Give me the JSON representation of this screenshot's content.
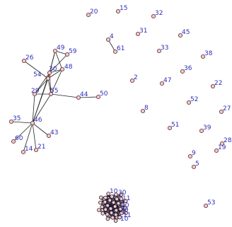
{
  "graph": {
    "nodes": [
      {
        "id": "20"
      },
      {
        "id": "15"
      },
      {
        "id": "32"
      },
      {
        "id": "31"
      },
      {
        "id": "45"
      },
      {
        "id": "4"
      },
      {
        "id": "61"
      },
      {
        "id": "33"
      },
      {
        "id": "38"
      },
      {
        "id": "36"
      },
      {
        "id": "49"
      },
      {
        "id": "59"
      },
      {
        "id": "26"
      },
      {
        "id": "48"
      },
      {
        "id": "54"
      },
      {
        "id": "30"
      },
      {
        "id": "2"
      },
      {
        "id": "47"
      },
      {
        "id": "22"
      },
      {
        "id": "29"
      },
      {
        "id": "55"
      },
      {
        "id": "44"
      },
      {
        "id": "50"
      },
      {
        "id": "52"
      },
      {
        "id": "27"
      },
      {
        "id": "8"
      },
      {
        "id": "35"
      },
      {
        "id": "46"
      },
      {
        "id": "51"
      },
      {
        "id": "39"
      },
      {
        "id": "43"
      },
      {
        "id": "60"
      },
      {
        "id": "28"
      },
      {
        "id": "14"
      },
      {
        "id": "21"
      },
      {
        "id": "9"
      },
      {
        "id": "19"
      },
      {
        "id": "5"
      },
      {
        "id": "53"
      }
    ],
    "edges": [
      [
        "4",
        "61"
      ],
      [
        "49",
        "59"
      ],
      [
        "49",
        "48"
      ],
      [
        "49",
        "30"
      ],
      [
        "49",
        "54"
      ],
      [
        "26",
        "54"
      ],
      [
        "54",
        "30"
      ],
      [
        "54",
        "29"
      ],
      [
        "54",
        "55"
      ],
      [
        "54",
        "46"
      ],
      [
        "30",
        "48"
      ],
      [
        "30",
        "29"
      ],
      [
        "30",
        "55"
      ],
      [
        "30",
        "46"
      ],
      [
        "48",
        "55"
      ],
      [
        "48",
        "54"
      ],
      [
        "29",
        "55"
      ],
      [
        "29",
        "46"
      ],
      [
        "55",
        "44"
      ],
      [
        "55",
        "46"
      ],
      [
        "44",
        "50"
      ],
      [
        "35",
        "46"
      ],
      [
        "46",
        "60"
      ],
      [
        "46",
        "14"
      ],
      [
        "46",
        "21"
      ],
      [
        "46",
        "43"
      ],
      [
        "59",
        "30"
      ]
    ],
    "cluster": {
      "labels": [
        "10",
        "30",
        "11",
        "10",
        "30",
        "11",
        "10"
      ]
    }
  }
}
